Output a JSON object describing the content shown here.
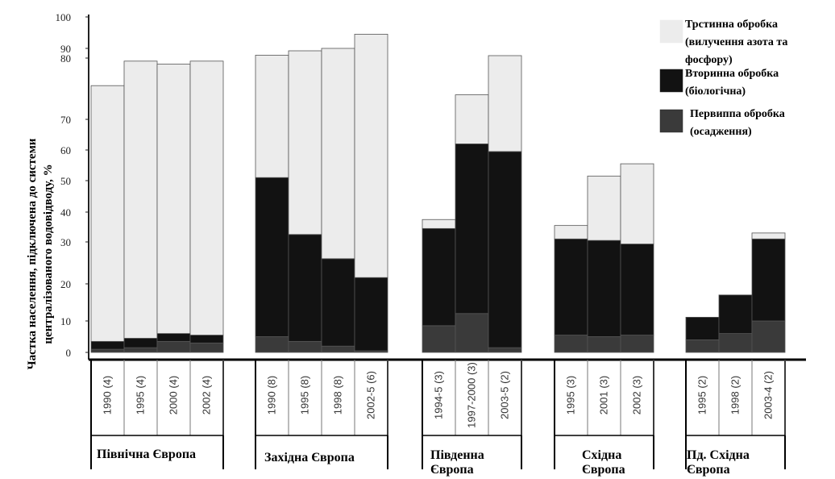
{
  "chart_data": {
    "type": "bar",
    "stacked": true,
    "ylabel_line1": "Частка населення, підключена до системи",
    "ylabel_line2": "централізованого водовідводу, %",
    "ylim": [
      0,
      100
    ],
    "yticks": [
      0,
      10,
      20,
      30,
      40,
      50,
      60,
      70,
      80,
      90,
      100
    ],
    "series": [
      {
        "name": "Первиппа обробка (осадження)",
        "color": "#3a3a3a"
      },
      {
        "name": "Вторинна обробка (біологічна)",
        "color": "#121212"
      },
      {
        "name": "Трстинна обробка (вилучення азота та фосфору)",
        "color": "#ececec"
      }
    ],
    "legend": {
      "position": "top-right",
      "items": [
        {
          "lines": [
            "Трстинна обробка",
            "(вилучення азота та",
            "фосфору)"
          ],
          "color": "#ececec"
        },
        {
          "lines": [
            "Вторинна обробка",
            "(біологічна)"
          ],
          "color": "#121212"
        },
        {
          "lines": [
            "Первиппа обробка",
            "(осадження)"
          ],
          "color": "#3a3a3a"
        }
      ]
    },
    "groups": [
      {
        "name_lines": [
          "Північна Європа"
        ],
        "bars": [
          {
            "label": "1990 (4)",
            "primary": 1,
            "secondary": 2.5,
            "tertiary": 72
          },
          {
            "label": "1995 (4)",
            "primary": 1.5,
            "secondary": 3,
            "tertiary": 75
          },
          {
            "label": "2000 (4)",
            "primary": 3.5,
            "secondary": 2.5,
            "tertiary": 73
          },
          {
            "label": "2002 (4)",
            "primary": 3,
            "secondary": 2.5,
            "tertiary": 74
          }
        ]
      },
      {
        "name_lines": [
          "Західна Європа"
        ],
        "bars": [
          {
            "label": "1990 (8)",
            "primary": 5,
            "secondary": 46,
            "tertiary": 32
          },
          {
            "label": "1995 (8)",
            "primary": 3.5,
            "secondary": 29,
            "tertiary": 55
          },
          {
            "label": "1998 (8)",
            "primary": 2,
            "secondary": 24,
            "tertiary": 64
          },
          {
            "label": "2002-5 (6)",
            "primary": 0.5,
            "secondary": 21,
            "tertiary": 73
          }
        ]
      },
      {
        "name_lines": [
          "Південна",
          "Європа"
        ],
        "bars": [
          {
            "label": "1994-5 (3)",
            "primary": 8.5,
            "secondary": 26,
            "tertiary": 3
          },
          {
            "label": "1997-2000 (3)",
            "primary": 12,
            "secondary": 50,
            "tertiary": 12
          },
          {
            "label": "2003-5 (2)",
            "primary": 1.5,
            "secondary": 58,
            "tertiary": 23
          }
        ]
      },
      {
        "name_lines": [
          "Східна",
          "Європа"
        ],
        "bars": [
          {
            "label": "1995 (3)",
            "primary": 5.5,
            "secondary": 25.5,
            "tertiary": 4.5
          },
          {
            "label": "2001 (3)",
            "primary": 5,
            "secondary": 25.5,
            "tertiary": 21
          },
          {
            "label": "2002 (3)",
            "primary": 5.5,
            "secondary": 24,
            "tertiary": 26
          }
        ]
      },
      {
        "name_lines": [
          "Пд. Східна",
          "Європа"
        ],
        "bars": [
          {
            "label": "1995 (2)",
            "primary": 4,
            "secondary": 7,
            "tertiary": 0
          },
          {
            "label": "1998 (2)",
            "primary": 6,
            "secondary": 11,
            "tertiary": 0
          },
          {
            "label": "2003-4 (2)",
            "primary": 10,
            "secondary": 21,
            "tertiary": 2
          }
        ]
      }
    ]
  }
}
